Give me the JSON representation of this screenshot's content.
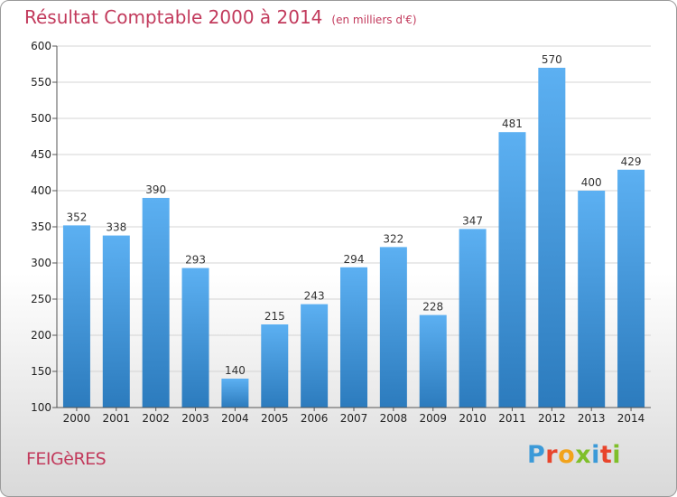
{
  "title": "Résultat Comptable 2000 à 2014",
  "unit": "(en milliers d'€)",
  "city": "FEIGèRES",
  "logo": "Proxiti",
  "colors": {
    "bar_top": "#5aaef0",
    "bar_bottom": "#2f7fc0",
    "title": "#c23a5c"
  },
  "chart_data": {
    "type": "bar",
    "categories": [
      "2000",
      "2001",
      "2002",
      "2003",
      "2004",
      "2005",
      "2006",
      "2007",
      "2008",
      "2009",
      "2010",
      "2011",
      "2012",
      "2013",
      "2014"
    ],
    "values": [
      352,
      338,
      390,
      293,
      140,
      215,
      243,
      294,
      322,
      228,
      347,
      481,
      570,
      400,
      429
    ],
    "ylim": [
      100,
      600
    ],
    "yticks": [
      100,
      150,
      200,
      250,
      300,
      350,
      400,
      450,
      500,
      550,
      600
    ],
    "grid": true
  }
}
